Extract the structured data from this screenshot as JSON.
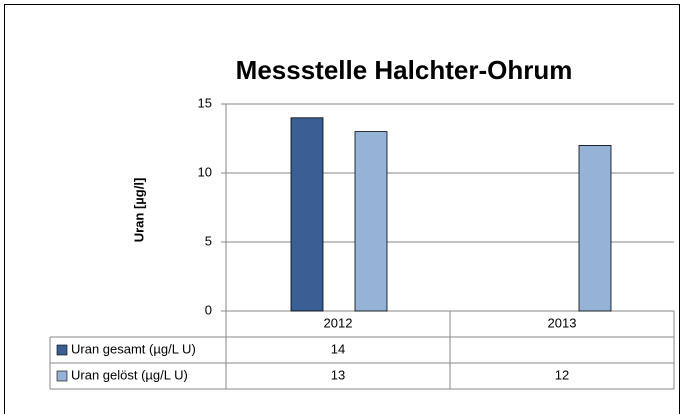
{
  "chart_data": {
    "type": "bar",
    "title": "Messstelle Halchter-Ohrum",
    "y_label": "Uran [µg/l]",
    "categories": [
      "2012",
      "2013"
    ],
    "series": [
      {
        "name": "Uran gesamt (µg/L U)",
        "color": "#3a5f94",
        "values": [
          14,
          null
        ]
      },
      {
        "name": "Uran gelöst (µg/L U)",
        "color": "#95b3d7",
        "values": [
          13,
          12
        ]
      }
    ],
    "ylim": [
      0,
      15
    ],
    "yticks": [
      0,
      5,
      10,
      15
    ],
    "grid": true
  }
}
